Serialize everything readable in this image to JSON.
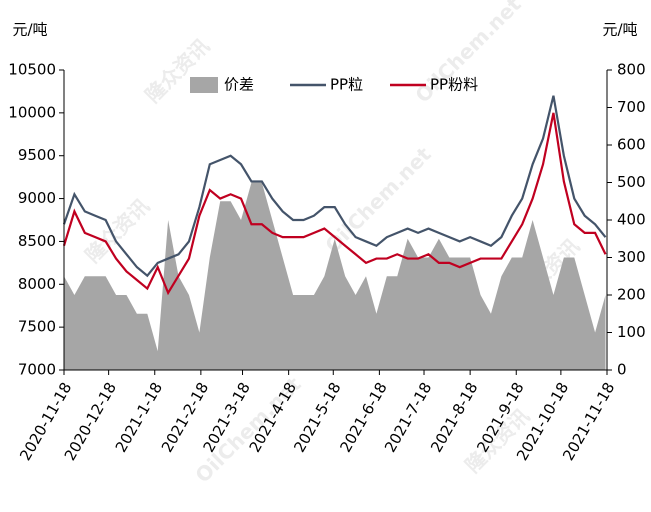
{
  "chart_data": {
    "type": "line",
    "y_label": "元/吨",
    "y2_label": "元/吨",
    "watermark": [
      "隆众资讯",
      "OilChem.net"
    ],
    "x": [
      "2020-11-18",
      "2020-11-25",
      "2020-12-02",
      "2020-12-09",
      "2020-12-16",
      "2020-12-23",
      "2020-12-30",
      "2021-01-06",
      "2021-01-13",
      "2021-01-20",
      "2021-01-27",
      "2021-02-03",
      "2021-02-10",
      "2021-02-17",
      "2021-02-24",
      "2021-03-03",
      "2021-03-10",
      "2021-03-17",
      "2021-03-24",
      "2021-03-31",
      "2021-04-07",
      "2021-04-14",
      "2021-04-21",
      "2021-04-28",
      "2021-05-05",
      "2021-05-12",
      "2021-05-19",
      "2021-05-26",
      "2021-06-02",
      "2021-06-09",
      "2021-06-16",
      "2021-06-23",
      "2021-06-30",
      "2021-07-07",
      "2021-07-14",
      "2021-07-21",
      "2021-07-28",
      "2021-08-04",
      "2021-08-11",
      "2021-08-18",
      "2021-08-25",
      "2021-09-01",
      "2021-09-08",
      "2021-09-15",
      "2021-09-22",
      "2021-09-29",
      "2021-10-06",
      "2021-10-13",
      "2021-10-20",
      "2021-10-27",
      "2021-11-03",
      "2021-11-10",
      "2021-11-17"
    ],
    "series": [
      {
        "name": "价差",
        "type": "area",
        "axis": "y2",
        "color": "#a6a6a6",
        "values": [
          250,
          200,
          250,
          250,
          250,
          200,
          200,
          150,
          150,
          50,
          400,
          250,
          200,
          100,
          300,
          450,
          450,
          400,
          500,
          500,
          400,
          300,
          200,
          200,
          200,
          250,
          350,
          250,
          200,
          250,
          150,
          250,
          250,
          350,
          300,
          300,
          350,
          300,
          300,
          300,
          200,
          150,
          250,
          300,
          300,
          400,
          300,
          200,
          300,
          300,
          200,
          100,
          200
        ]
      },
      {
        "name": "PP粒",
        "type": "line",
        "color": "#44546a",
        "values": [
          8700,
          9050,
          8850,
          8800,
          8750,
          8500,
          8350,
          8200,
          8100,
          8250,
          8300,
          8350,
          8500,
          8900,
          9400,
          9450,
          9500,
          9400,
          9200,
          9200,
          9000,
          8850,
          8750,
          8750,
          8800,
          8900,
          8900,
          8700,
          8550,
          8500,
          8450,
          8550,
          8600,
          8650,
          8600,
          8650,
          8600,
          8550,
          8500,
          8550,
          8500,
          8450,
          8550,
          8800,
          9000,
          9400,
          9700,
          10200,
          9500,
          9000,
          8800,
          8700,
          8550
        ]
      },
      {
        "name": "PP粉料",
        "type": "line",
        "color": "#c00020",
        "values": [
          8450,
          8850,
          8600,
          8550,
          8500,
          8300,
          8150,
          8050,
          7950,
          8200,
          7900,
          8100,
          8300,
          8800,
          9100,
          9000,
          9050,
          9000,
          8700,
          8700,
          8600,
          8550,
          8550,
          8550,
          8600,
          8650,
          8550,
          8450,
          8350,
          8250,
          8300,
          8300,
          8350,
          8300,
          8300,
          8350,
          8250,
          8250,
          8200,
          8250,
          8300,
          8300,
          8300,
          8500,
          8700,
          9000,
          9400,
          10000,
          9200,
          8700,
          8600,
          8600,
          8350
        ]
      }
    ],
    "ylim": [
      7000,
      10500
    ],
    "yticks": [
      7000,
      7500,
      8000,
      8500,
      9000,
      9500,
      10000,
      10500
    ],
    "y2lim": [
      0,
      800
    ],
    "y2ticks": [
      0,
      100,
      200,
      300,
      400,
      500,
      600,
      700,
      800
    ],
    "xlim": [
      "2020-11-18",
      "2021-11-18"
    ],
    "xticks": [
      "2020-11-18",
      "2020-12-18",
      "2021-1-18",
      "2021-2-18",
      "2021-3-18",
      "2021-4-18",
      "2021-5-18",
      "2021-6-18",
      "2021-7-18",
      "2021-8-18",
      "2021-9-18",
      "2021-10-18",
      "2021-11-18"
    ]
  }
}
